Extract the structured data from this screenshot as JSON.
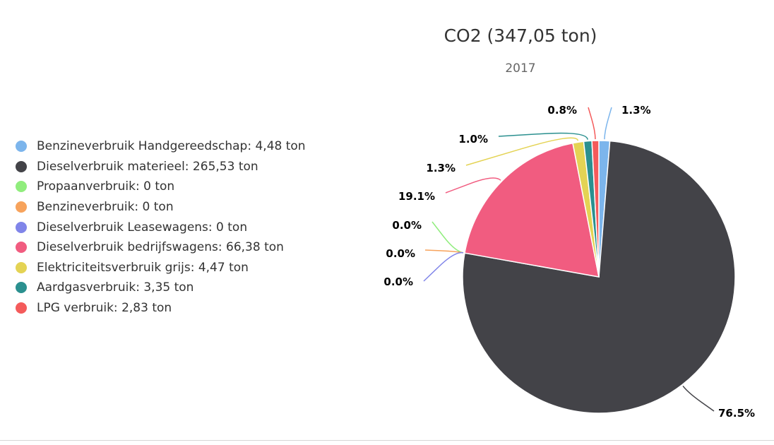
{
  "chart_data": {
    "type": "pie",
    "title": "CO2 (347,05 ton)",
    "subtitle": "2017",
    "legend_position": "left",
    "unit": "ton",
    "slices": [
      {
        "name": "Benzineverbruik Handgereedschap",
        "value": 4.48,
        "value_label": "4,48",
        "percent_label": "1.3%",
        "color": "#7cb5ec"
      },
      {
        "name": "Dieselverbruik materieel",
        "value": 265.53,
        "value_label": "265,53",
        "percent_label": "76.5%",
        "color": "#434348"
      },
      {
        "name": "Propaanverbruik",
        "value": 0,
        "value_label": "0",
        "percent_label": "0.0%",
        "color": "#90ed7d"
      },
      {
        "name": "Benzineverbruik",
        "value": 0,
        "value_label": "0",
        "percent_label": "0.0%",
        "color": "#f7a35c"
      },
      {
        "name": "Dieselverbruik Leasewagens",
        "value": 0,
        "value_label": "0",
        "percent_label": "0.0%",
        "color": "#8085e9"
      },
      {
        "name": "Dieselverbruik bedrijfswagens",
        "value": 66.38,
        "value_label": "66,38",
        "percent_label": "19.1%",
        "color": "#f15c80"
      },
      {
        "name": "Elektriciteitsverbruik grijs",
        "value": 4.47,
        "value_label": "4,47",
        "percent_label": "1.3%",
        "color": "#e4d354"
      },
      {
        "name": "Aardgasverbruik",
        "value": 3.35,
        "value_label": "3,35",
        "percent_label": "1.0%",
        "color": "#2b908f"
      },
      {
        "name": "LPG verbruik",
        "value": 2.83,
        "value_label": "2,83",
        "percent_label": "0.8%",
        "color": "#f45b5b"
      }
    ]
  }
}
